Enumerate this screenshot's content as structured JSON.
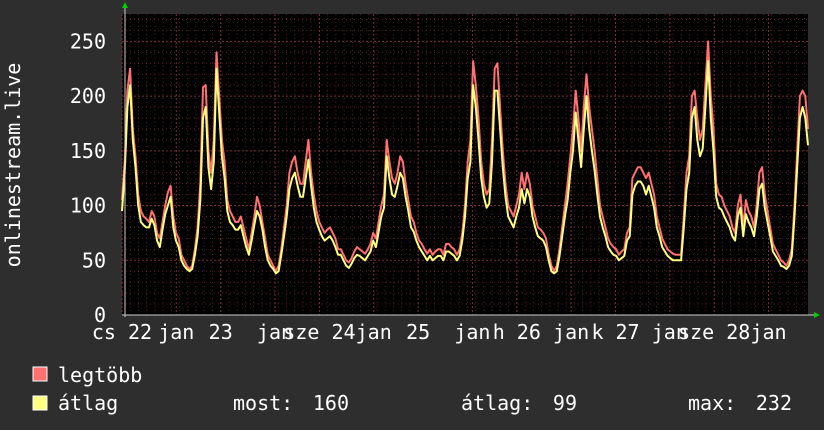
{
  "chart_data": {
    "type": "line",
    "ylabel": "onlinestream.live",
    "ylim": [
      0,
      275
    ],
    "yticks": [
      0,
      50,
      100,
      150,
      200,
      250
    ],
    "xticks": [
      {
        "label": "cs 22",
        "t": 0
      },
      {
        "label": "jan",
        "t": 0.55
      },
      {
        "label": "23",
        "t": 1
      },
      {
        "label": "jan",
        "t": 1.55
      },
      {
        "label": "sze 24",
        "t": 2
      },
      {
        "label": "jan",
        "t": 2.55
      },
      {
        "label": "25",
        "t": 3
      },
      {
        "label": "jan",
        "t": 3.55
      },
      {
        "label": "h 26",
        "t": 4
      },
      {
        "label": "jan",
        "t": 4.55
      },
      {
        "label": "k 27",
        "t": 5
      },
      {
        "label": "jan",
        "t": 5.55
      },
      {
        "label": "sze 28",
        "t": 6
      },
      {
        "label": "jan",
        "t": 6.55
      }
    ],
    "xlim": [
      0,
      6.95
    ],
    "grid": true,
    "series": [
      {
        "name": "legtöbb",
        "color": "#ff7070",
        "values": [
          105,
          140,
          205,
          225,
          170,
          145,
          110,
          95,
          90,
          88,
          85,
          95,
          90,
          75,
          70,
          85,
          100,
          112,
          118,
          90,
          75,
          70,
          55,
          50,
          45,
          42,
          45,
          60,
          80,
          120,
          208,
          210,
          150,
          130,
          160,
          240,
          200,
          160,
          140,
          105,
          95,
          90,
          85,
          85,
          90,
          80,
          70,
          60,
          75,
          90,
          108,
          100,
          85,
          70,
          55,
          50,
          45,
          40,
          45,
          60,
          80,
          100,
          130,
          140,
          145,
          130,
          120,
          120,
          140,
          160,
          130,
          110,
          95,
          85,
          80,
          75,
          78,
          80,
          75,
          70,
          60,
          60,
          55,
          50,
          48,
          52,
          58,
          62,
          60,
          58,
          56,
          60,
          65,
          75,
          70,
          85,
          100,
          110,
          160,
          140,
          125,
          120,
          130,
          145,
          140,
          120,
          105,
          90,
          85,
          75,
          68,
          65,
          60,
          56,
          60,
          55,
          58,
          60,
          60,
          55,
          65,
          65,
          62,
          60,
          55,
          60,
          75,
          100,
          140,
          160,
          232,
          210,
          180,
          140,
          120,
          110,
          115,
          160,
          225,
          230,
          190,
          150,
          120,
          100,
          95,
          90,
          100,
          110,
          130,
          115,
          130,
          120,
          100,
          90,
          80,
          78,
          75,
          70,
          55,
          45,
          40,
          45,
          60,
          80,
          100,
          120,
          145,
          170,
          205,
          180,
          150,
          190,
          220,
          190,
          170,
          150,
          125,
          100,
          90,
          80,
          70,
          65,
          62,
          60,
          55,
          58,
          60,
          75,
          80,
          125,
          130,
          135,
          135,
          130,
          125,
          130,
          120,
          110,
          90,
          80,
          70,
          65,
          60,
          58,
          56,
          55,
          55,
          55,
          90,
          130,
          145,
          200,
          205,
          180,
          160,
          170,
          210,
          250,
          200,
          170,
          120,
          110,
          108,
          100,
          95,
          90,
          80,
          75,
          100,
          110,
          80,
          105,
          95,
          90,
          80,
          100,
          130,
          135,
          110,
          95,
          80,
          65,
          60,
          55,
          50,
          48,
          45,
          50,
          60,
          100,
          150,
          200,
          205,
          200,
          170
        ]
      },
      {
        "name": "átlag",
        "color": "#ffff80",
        "values": [
          95,
          130,
          190,
          210,
          160,
          135,
          100,
          85,
          82,
          80,
          80,
          88,
          82,
          68,
          62,
          78,
          92,
          100,
          108,
          80,
          68,
          62,
          50,
          45,
          42,
          40,
          42,
          55,
          72,
          105,
          180,
          190,
          135,
          115,
          140,
          225,
          185,
          145,
          125,
          95,
          85,
          82,
          78,
          78,
          82,
          72,
          62,
          55,
          68,
          82,
          95,
          90,
          78,
          62,
          50,
          45,
          42,
          38,
          40,
          55,
          72,
          90,
          115,
          125,
          130,
          118,
          108,
          108,
          125,
          142,
          118,
          98,
          85,
          78,
          72,
          68,
          70,
          72,
          68,
          62,
          55,
          55,
          50,
          45,
          43,
          47,
          52,
          55,
          54,
          52,
          50,
          54,
          58,
          68,
          62,
          76,
          90,
          98,
          145,
          125,
          110,
          108,
          118,
          130,
          125,
          108,
          95,
          80,
          76,
          68,
          62,
          58,
          54,
          50,
          54,
          50,
          52,
          54,
          54,
          50,
          58,
          58,
          56,
          54,
          50,
          54,
          68,
          90,
          125,
          140,
          210,
          190,
          160,
          125,
          108,
          98,
          102,
          140,
          205,
          205,
          170,
          135,
          108,
          90,
          85,
          80,
          90,
          98,
          115,
          102,
          115,
          108,
          90,
          80,
          72,
          70,
          68,
          62,
          50,
          40,
          38,
          40,
          54,
          72,
          90,
          105,
          130,
          150,
          185,
          160,
          135,
          170,
          200,
          170,
          150,
          132,
          110,
          90,
          80,
          72,
          62,
          58,
          55,
          54,
          50,
          52,
          54,
          68,
          72,
          110,
          118,
          122,
          122,
          118,
          110,
          118,
          108,
          98,
          80,
          72,
          62,
          58,
          54,
          52,
          50,
          50,
          50,
          50,
          80,
          115,
          130,
          180,
          190,
          160,
          145,
          152,
          190,
          232,
          180,
          150,
          108,
          98,
          96,
          90,
          85,
          80,
          72,
          68,
          90,
          98,
          72,
          92,
          85,
          80,
          72,
          90,
          115,
          120,
          98,
          85,
          72,
          58,
          54,
          50,
          45,
          44,
          42,
          45,
          54,
          90,
          135,
          180,
          190,
          180,
          155
        ]
      }
    ],
    "legend": [
      {
        "name": "legtöbb",
        "color": "#ff7070"
      },
      {
        "name": "átlag",
        "color": "#ffff80"
      }
    ],
    "stats": {
      "most_label": "most:",
      "most_value": "160",
      "atlag_label": "átlag:",
      "atlag_value": "99",
      "max_label": "max:",
      "max_value": "232"
    },
    "colors": {
      "background": "#2e2e2e",
      "plot_background": "#000000",
      "grid_minor": "#5a2020",
      "grid_major": "#7a3030",
      "axis": "#cccccc",
      "arrow": "#00cc00",
      "text": "#ffffff"
    }
  }
}
